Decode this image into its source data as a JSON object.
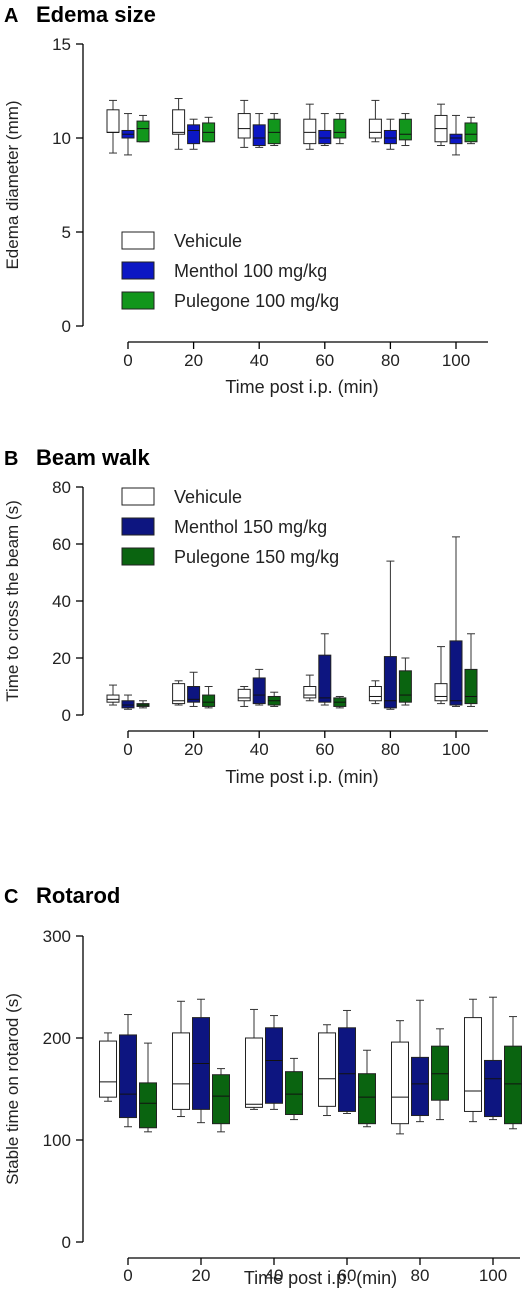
{
  "chart_data": [
    {
      "type": "box",
      "panel_letter": "A",
      "title": "Edema size",
      "xlabel": "Time post i.p. (min)",
      "ylabel": "Edema diameter (mm)",
      "ylim": [
        0,
        15
      ],
      "yticks": [
        0,
        5,
        10,
        15
      ],
      "categories": [
        "0",
        "20",
        "40",
        "60",
        "80",
        "100"
      ],
      "legend_position": "bottom-left",
      "series": [
        {
          "name": "Vehicule",
          "color": "#ffffff",
          "boxes": [
            {
              "min": 9.2,
              "q1": 10.3,
              "median": 10.3,
              "q3": 11.5,
              "max": 12.0
            },
            {
              "min": 9.4,
              "q1": 10.2,
              "median": 10.3,
              "q3": 11.5,
              "max": 12.1
            },
            {
              "min": 9.5,
              "q1": 10.0,
              "median": 10.5,
              "q3": 11.3,
              "max": 12.0
            },
            {
              "min": 9.4,
              "q1": 9.7,
              "median": 10.3,
              "q3": 11.0,
              "max": 11.8
            },
            {
              "min": 9.8,
              "q1": 10.0,
              "median": 10.3,
              "q3": 11.0,
              "max": 12.0
            },
            {
              "min": 9.6,
              "q1": 9.8,
              "median": 10.5,
              "q3": 11.2,
              "max": 11.8
            }
          ]
        },
        {
          "name": "Menthol 100 mg/kg",
          "color": "#0c17c4",
          "boxes": [
            {
              "min": 9.1,
              "q1": 10.0,
              "median": 10.2,
              "q3": 10.4,
              "max": 11.3
            },
            {
              "min": 9.4,
              "q1": 9.7,
              "median": 10.4,
              "q3": 10.7,
              "max": 11.0
            },
            {
              "min": 9.5,
              "q1": 9.6,
              "median": 10.0,
              "q3": 10.7,
              "max": 11.3
            },
            {
              "min": 9.6,
              "q1": 9.7,
              "median": 10.0,
              "q3": 10.4,
              "max": 11.3
            },
            {
              "min": 9.4,
              "q1": 9.7,
              "median": 10.0,
              "q3": 10.4,
              "max": 11.0
            },
            {
              "min": 9.1,
              "q1": 9.7,
              "median": 10.0,
              "q3": 10.2,
              "max": 11.2
            }
          ]
        },
        {
          "name": "Pulegone 100 mg/kg",
          "color": "#12961c",
          "boxes": [
            {
              "min": 9.8,
              "q1": 9.8,
              "median": 10.5,
              "q3": 10.9,
              "max": 11.2
            },
            {
              "min": 9.8,
              "q1": 9.8,
              "median": 10.3,
              "q3": 10.8,
              "max": 11.1
            },
            {
              "min": 9.6,
              "q1": 9.7,
              "median": 10.3,
              "q3": 11.0,
              "max": 11.3
            },
            {
              "min": 9.7,
              "q1": 10.0,
              "median": 10.3,
              "q3": 11.0,
              "max": 11.3
            },
            {
              "min": 9.6,
              "q1": 9.9,
              "median": 10.2,
              "q3": 11.0,
              "max": 11.3
            },
            {
              "min": 9.7,
              "q1": 9.8,
              "median": 10.2,
              "q3": 10.8,
              "max": 11.1
            }
          ]
        }
      ]
    },
    {
      "type": "box",
      "panel_letter": "B",
      "title": "Beam walk",
      "xlabel": "Time post i.p. (min)",
      "ylabel": "Time to cross the beam (s)",
      "ylim": [
        0,
        80
      ],
      "yticks": [
        0,
        20,
        40,
        60,
        80
      ],
      "categories": [
        "0",
        "20",
        "40",
        "60",
        "80",
        "100"
      ],
      "legend_position": "top-left",
      "series": [
        {
          "name": "Vehicule",
          "color": "#ffffff",
          "boxes": [
            {
              "min": 3.5,
              "q1": 4.5,
              "median": 5.5,
              "q3": 7.0,
              "max": 10.5
            },
            {
              "min": 3.5,
              "q1": 4.0,
              "median": 5.0,
              "q3": 11.0,
              "max": 12.0
            },
            {
              "min": 3.0,
              "q1": 5.0,
              "median": 6.0,
              "q3": 9.0,
              "max": 10.0
            },
            {
              "min": 5.0,
              "q1": 6.0,
              "median": 7.0,
              "q3": 10.0,
              "max": 14.0
            },
            {
              "min": 4.0,
              "q1": 5.0,
              "median": 6.5,
              "q3": 10.0,
              "max": 12.0
            },
            {
              "min": 4.0,
              "q1": 5.0,
              "median": 6.5,
              "q3": 11.0,
              "max": 24.0
            }
          ]
        },
        {
          "name": "Menthol 150 mg/kg",
          "color": "#0d1580",
          "boxes": [
            {
              "min": 2.0,
              "q1": 2.5,
              "median": 3.5,
              "q3": 5.0,
              "max": 7.0
            },
            {
              "min": 3.0,
              "q1": 4.5,
              "median": 5.5,
              "q3": 10.0,
              "max": 15.0
            },
            {
              "min": 3.5,
              "q1": 4.0,
              "median": 7.0,
              "q3": 13.0,
              "max": 16.0
            },
            {
              "min": 3.5,
              "q1": 4.5,
              "median": 6.0,
              "q3": 21.0,
              "max": 28.5
            },
            {
              "min": 2.0,
              "q1": 2.5,
              "median": 5.0,
              "q3": 20.5,
              "max": 54.0
            },
            {
              "min": 3.0,
              "q1": 3.5,
              "median": 5.0,
              "q3": 26.0,
              "max": 62.5
            }
          ]
        },
        {
          "name": "Pulegone 150 mg/kg",
          "color": "#0a6410",
          "boxes": [
            {
              "min": 2.5,
              "q1": 3.0,
              "median": 3.5,
              "q3": 4.0,
              "max": 5.0
            },
            {
              "min": 2.5,
              "q1": 3.0,
              "median": 4.5,
              "q3": 7.0,
              "max": 10.0
            },
            {
              "min": 3.0,
              "q1": 3.5,
              "median": 5.0,
              "q3": 6.5,
              "max": 8.0
            },
            {
              "min": 2.5,
              "q1": 3.0,
              "median": 4.5,
              "q3": 6.0,
              "max": 6.5
            },
            {
              "min": 3.5,
              "q1": 4.5,
              "median": 7.0,
              "q3": 15.5,
              "max": 20.0
            },
            {
              "min": 3.0,
              "q1": 4.0,
              "median": 6.5,
              "q3": 16.0,
              "max": 28.5
            }
          ]
        }
      ]
    },
    {
      "type": "box",
      "panel_letter": "C",
      "title": "Rotarod",
      "xlabel": "Time post i.p. (min)",
      "ylabel": "Stable time on rotarod (s)",
      "ylim": [
        0,
        300
      ],
      "yticks": [
        0,
        100,
        200,
        300
      ],
      "categories": [
        "0",
        "20",
        "40",
        "60",
        "80",
        "100"
      ],
      "legend_position": "none",
      "series": [
        {
          "name": "Vehicule",
          "color": "#ffffff",
          "boxes": [
            {
              "min": 138,
              "q1": 142,
              "median": 157,
              "q3": 197,
              "max": 205
            },
            {
              "min": 123,
              "q1": 130,
              "median": 155,
              "q3": 205,
              "max": 236
            },
            {
              "min": 130,
              "q1": 132,
              "median": 135,
              "q3": 200,
              "max": 228
            },
            {
              "min": 124,
              "q1": 133,
              "median": 160,
              "q3": 205,
              "max": 213
            },
            {
              "min": 106,
              "q1": 116,
              "median": 142,
              "q3": 196,
              "max": 217
            },
            {
              "min": 118,
              "q1": 128,
              "median": 148,
              "q3": 220,
              "max": 238
            }
          ]
        },
        {
          "name": "Menthol",
          "color": "#0d1580",
          "boxes": [
            {
              "min": 113,
              "q1": 122,
              "median": 145,
              "q3": 203,
              "max": 223
            },
            {
              "min": 117,
              "q1": 130,
              "median": 175,
              "q3": 220,
              "max": 238
            },
            {
              "min": 130,
              "q1": 136,
              "median": 178,
              "q3": 210,
              "max": 222
            },
            {
              "min": 126,
              "q1": 128,
              "median": 165,
              "q3": 210,
              "max": 227
            },
            {
              "min": 118,
              "q1": 124,
              "median": 155,
              "q3": 181,
              "max": 237
            },
            {
              "min": 120,
              "q1": 123,
              "median": 160,
              "q3": 178,
              "max": 240
            }
          ]
        },
        {
          "name": "Pulegone",
          "color": "#0a6410",
          "boxes": [
            {
              "min": 108,
              "q1": 112,
              "median": 136,
              "q3": 156,
              "max": 195
            },
            {
              "min": 108,
              "q1": 116,
              "median": 143,
              "q3": 164,
              "max": 170
            },
            {
              "min": 120,
              "q1": 125,
              "median": 145,
              "q3": 167,
              "max": 180
            },
            {
              "min": 113,
              "q1": 116,
              "median": 142,
              "q3": 165,
              "max": 188
            },
            {
              "min": 120,
              "q1": 139,
              "median": 165,
              "q3": 192,
              "max": 209
            },
            {
              "min": 111,
              "q1": 116,
              "median": 155,
              "q3": 192,
              "max": 221
            }
          ]
        }
      ]
    }
  ]
}
